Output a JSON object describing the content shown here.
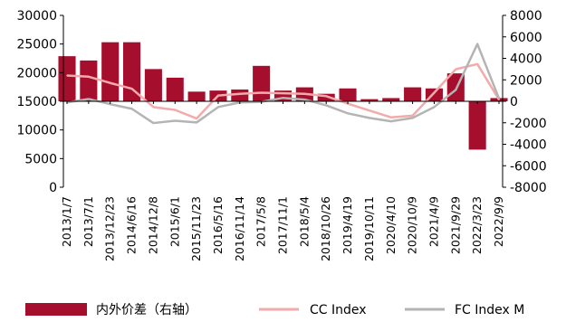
{
  "chart_data": {
    "type": "bar",
    "title": "",
    "x": [
      "2013/1/7",
      "2013/7/1",
      "2013/12/23",
      "2014/6/16",
      "2014/12/8",
      "2015/6/1",
      "2015/11/23",
      "2016/5/16",
      "2016/11/14",
      "2017/5/8",
      "2017/11/1",
      "2018/5/4",
      "2018/10/26",
      "2019/4/19",
      "2019/10/11",
      "2020/4/10",
      "2020/10/9",
      "2021/4/9",
      "2021/9/29",
      "2022/3/23",
      "2022/9/9"
    ],
    "xlabel": "",
    "y_left": {
      "label": "",
      "lim": [
        0,
        30000
      ],
      "ticks": [
        0,
        5000,
        10000,
        15000,
        20000,
        25000,
        30000
      ]
    },
    "y_right": {
      "label": "",
      "lim": [
        -8000,
        8000
      ],
      "ticks": [
        -8000,
        -6000,
        -4000,
        -2000,
        0,
        2000,
        4000,
        6000,
        8000
      ]
    },
    "series": [
      {
        "name": "内外价差（右轴）",
        "kind": "bar",
        "axis": "right",
        "color": "#a50f2d",
        "values": [
          4200,
          3800,
          5500,
          5500,
          3000,
          2200,
          900,
          1000,
          1100,
          3300,
          1000,
          1300,
          700,
          1200,
          200,
          300,
          1300,
          1200,
          2600,
          -4500,
          300
        ]
      },
      {
        "name": "CC Index",
        "kind": "line",
        "axis": "left",
        "color": "#f2aaaa",
        "values": [
          19500,
          19300,
          18200,
          17200,
          14000,
          13500,
          12000,
          16000,
          16300,
          16500,
          16400,
          16300,
          15900,
          14600,
          13400,
          12200,
          12500,
          16500,
          20600,
          21500,
          15300
        ]
      },
      {
        "name": "FC Index M",
        "kind": "line",
        "axis": "left",
        "color": "#b4b4b4",
        "values": [
          14800,
          15400,
          14500,
          13700,
          11200,
          11600,
          11300,
          14000,
          14800,
          14900,
          15600,
          15300,
          14300,
          12900,
          12100,
          11500,
          12100,
          14000,
          17000,
          25000,
          15500
        ]
      }
    ],
    "legend": "bottom",
    "grid": false
  }
}
